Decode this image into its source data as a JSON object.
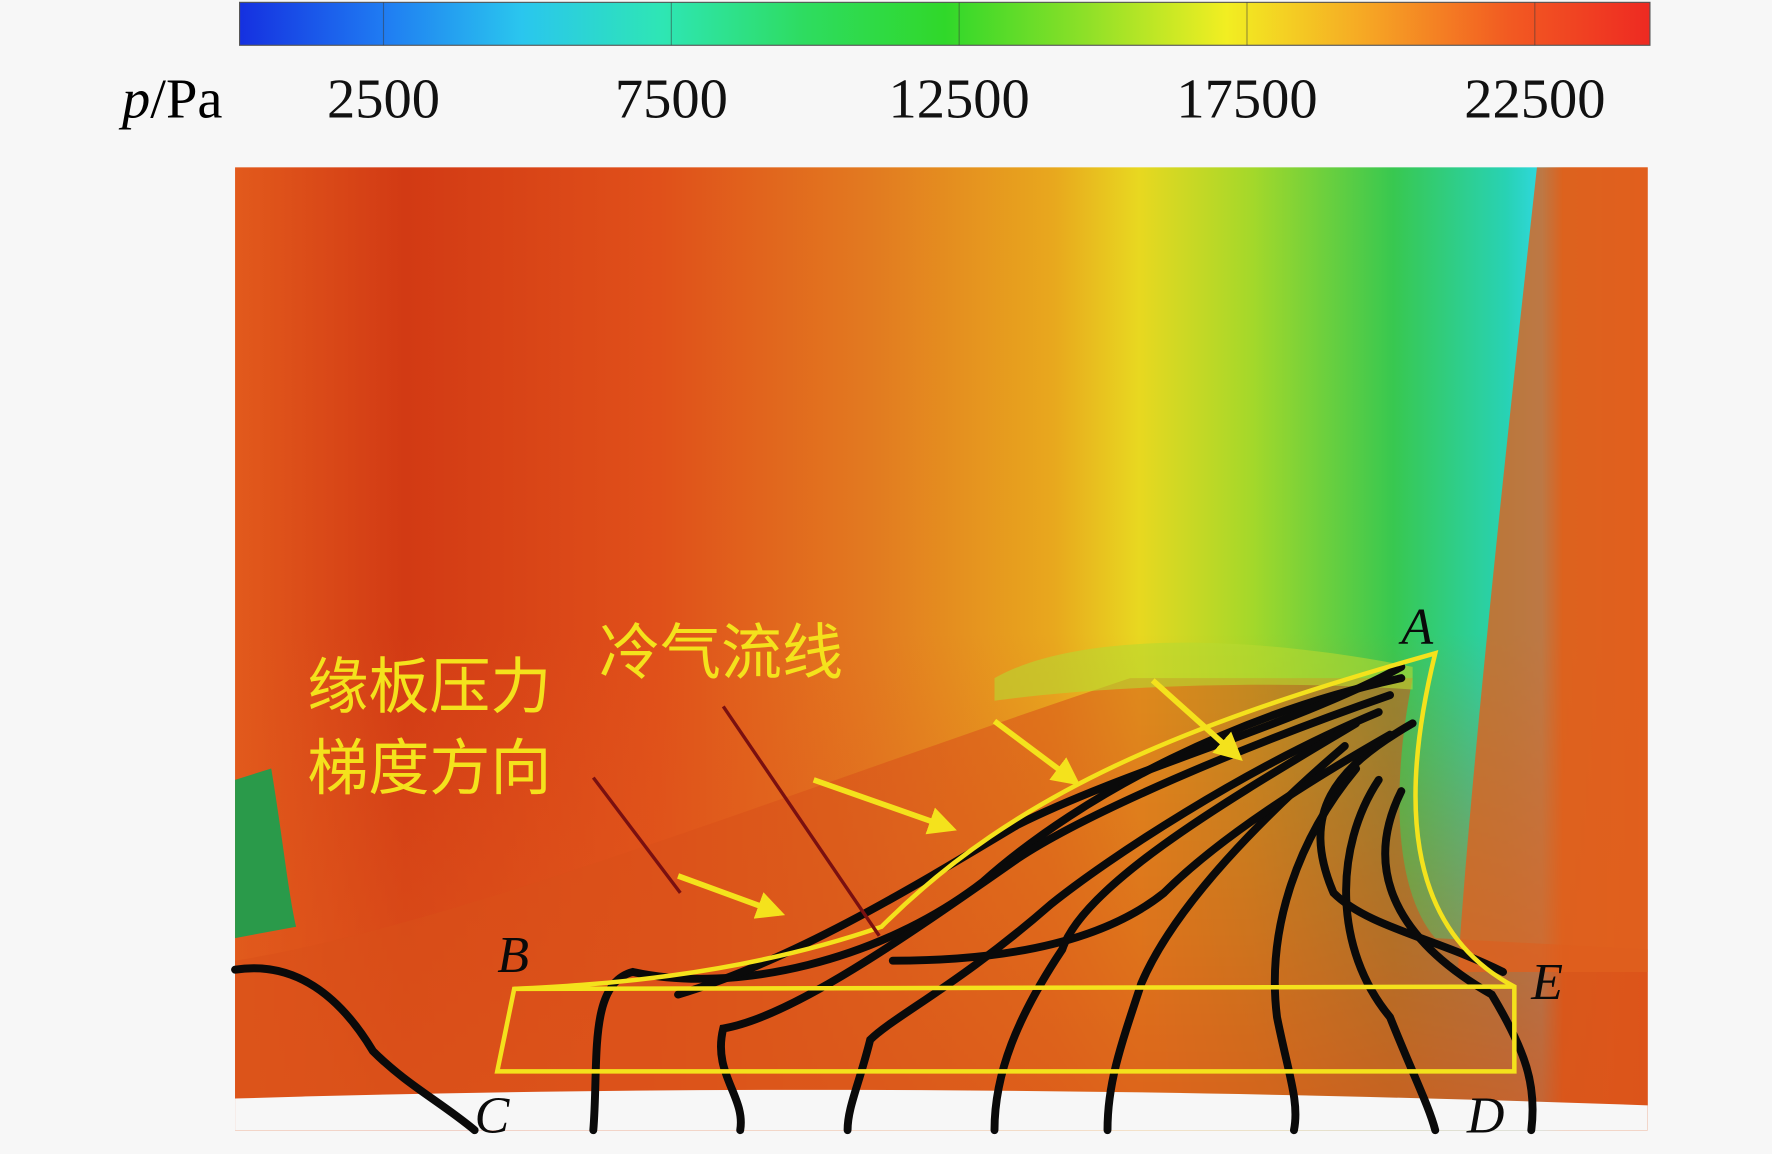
{
  "colorbar": {
    "variable": "p",
    "unit": "/Pa",
    "range": [
      0,
      24500
    ],
    "ticks": [
      2500,
      7500,
      12500,
      17500,
      22500
    ],
    "colors": [
      "#1530e0",
      "#1f7af2",
      "#2ac6ee",
      "#2ee6b4",
      "#2edc60",
      "#30d82a",
      "#8ee028",
      "#f2ee22",
      "#f6a624",
      "#f25a22",
      "#ee2a22"
    ]
  },
  "annotations": {
    "pressure_gradient": [
      "缘板压力",
      "梯度方向"
    ],
    "coolant_streamlines": "冷气流线"
  },
  "points": [
    "A",
    "B",
    "C",
    "D",
    "E"
  ]
}
